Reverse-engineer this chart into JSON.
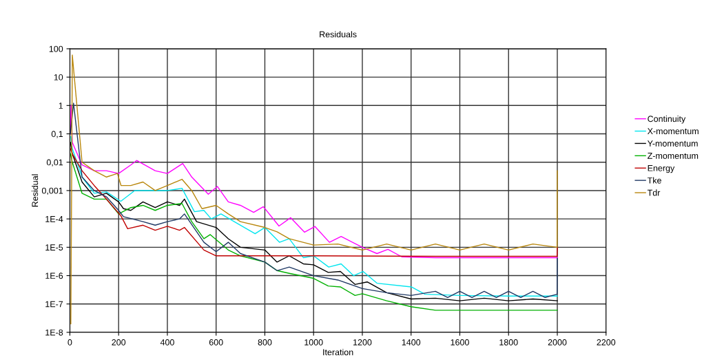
{
  "chart_data": {
    "type": "line",
    "title": "Residuals",
    "xlabel": "Iteration",
    "ylabel": "Residual",
    "log": "y",
    "grid": true,
    "legend": "right",
    "marker": "none",
    "line_style": "solid",
    "xlim": [
      0,
      2200
    ],
    "xticks": [
      0,
      200,
      400,
      600,
      800,
      1000,
      1200,
      1400,
      1600,
      1800,
      2000,
      2200
    ],
    "ylim": [
      1e-08,
      100
    ],
    "yticks": [
      {
        "value": 1e-08,
        "label": "1E-8"
      },
      {
        "value": 1e-07,
        "label": "1E-7"
      },
      {
        "value": 1e-06,
        "label": "1E-6"
      },
      {
        "value": 1e-05,
        "label": "1E-5"
      },
      {
        "value": 0.0001,
        "label": "1E-4"
      },
      {
        "value": 0.001,
        "label": "0,001"
      },
      {
        "value": 0.01,
        "label": "0,01"
      },
      {
        "value": 0.1,
        "label": "0,1"
      },
      {
        "value": 1,
        "label": "1"
      },
      {
        "value": 10,
        "label": "10"
      },
      {
        "value": 100,
        "label": "100"
      }
    ],
    "series": [
      {
        "name": "Continuity",
        "color": "#ff00ff",
        "x": [
          2,
          5,
          10,
          50,
          100,
          150,
          200,
          250,
          274,
          350,
          400,
          463,
          500,
          568,
          605,
          650,
          700,
          754,
          794,
          858,
          906,
          963,
          1006,
          1065,
          1113,
          1200,
          1260,
          1305,
          1362,
          1500,
          1700,
          2000
        ],
        "values": [
          0.1,
          1,
          0.05,
          0.008,
          0.005,
          0.005,
          0.004,
          0.008,
          0.0115,
          0.005,
          0.004,
          0.009,
          0.003,
          0.00074,
          0.0014,
          0.0004,
          0.0003,
          0.00017,
          0.00027,
          5.6e-05,
          0.00011,
          3.4e-05,
          5.4e-05,
          1.5e-05,
          2.4e-05,
          1e-05,
          6e-06,
          8.4e-06,
          4.6e-06,
          4.3e-06,
          4.3e-06,
          4.3e-06
        ]
      },
      {
        "name": "X-momentum",
        "color": "#00e5ee",
        "x": [
          4,
          10,
          50,
          100,
          150,
          209,
          266,
          350,
          400,
          460,
          511,
          550,
          580,
          620,
          700,
          760,
          800,
          860,
          900,
          958,
          1000,
          1062,
          1113,
          1164,
          1203,
          1260,
          1401,
          1457,
          1600,
          1800,
          2000
        ],
        "values": [
          0.08,
          0.03,
          0.003,
          0.0008,
          0.0009,
          0.00042,
          0.001,
          0.001,
          0.001,
          0.0012,
          0.00018,
          0.0002,
          0.0001,
          0.00015,
          6e-05,
          3e-05,
          5e-05,
          1.5e-05,
          2e-05,
          4.3e-06,
          5e-06,
          2e-06,
          2.6e-06,
          1e-06,
          1.4e-06,
          5.4e-07,
          4e-07,
          2.2e-07,
          2e-07,
          1.9e-07,
          1.9e-07
        ]
      },
      {
        "name": "Y-momentum",
        "color": "#000000",
        "x": [
          2,
          10,
          50,
          100,
          150,
          200,
          220,
          250,
          300,
          350,
          400,
          450,
          470,
          520,
          600,
          650,
          700,
          800,
          850,
          900,
          958,
          1000,
          1060,
          1110,
          1170,
          1220,
          1300,
          1400,
          1500,
          1600,
          1700,
          1800,
          1900,
          2000
        ],
        "values": [
          0.05,
          0.02,
          0.002,
          0.0006,
          0.0008,
          0.0004,
          0.00023,
          0.0002,
          0.0004,
          0.00025,
          0.0004,
          0.0003,
          0.0005,
          8e-05,
          5e-05,
          2e-05,
          1e-05,
          8e-06,
          3e-06,
          5e-06,
          2.6e-06,
          2.4e-06,
          1.3e-06,
          1.4e-06,
          4.9e-07,
          6e-07,
          2.5e-07,
          1.5e-07,
          1.6e-07,
          1.3e-07,
          1.6e-07,
          1.3e-07,
          1.5e-07,
          1.3e-07
        ]
      },
      {
        "name": "Z-momentum",
        "color": "#00b000",
        "x": [
          2,
          10,
          50,
          100,
          150,
          200,
          250,
          300,
          350,
          400,
          460,
          500,
          550,
          576,
          650,
          700,
          800,
          850,
          900,
          1000,
          1060,
          1110,
          1170,
          1200,
          1300,
          1400,
          1500,
          1700,
          2000
        ],
        "values": [
          0.02,
          0.01,
          0.0008,
          0.0005,
          0.0005,
          0.00015,
          0.00025,
          0.0003,
          0.0002,
          0.0003,
          0.00035,
          8e-05,
          2e-05,
          2.8e-05,
          8e-06,
          5e-06,
          3e-06,
          1.5e-06,
          1.2e-06,
          8e-07,
          4.3e-07,
          4e-07,
          2e-07,
          2.3e-07,
          1.3e-07,
          8e-08,
          6e-08,
          6e-08,
          6e-08
        ]
      },
      {
        "name": "Energy",
        "color": "#c00000",
        "x": [
          2,
          10,
          50,
          100,
          150,
          209,
          237,
          300,
          350,
          400,
          450,
          470,
          550,
          600,
          1000,
          1500,
          1999,
          2000
        ],
        "values": [
          0.03,
          0.02,
          0.005,
          0.0015,
          0.0005,
          0.00013,
          4.5e-05,
          6e-05,
          4e-05,
          5.5e-05,
          4e-05,
          5e-05,
          8e-06,
          5e-06,
          5e-06,
          4.8e-06,
          4.8e-06,
          1e-05
        ]
      },
      {
        "name": "Tke",
        "color": "#1f3864",
        "x": [
          2,
          15,
          50,
          100,
          150,
          200,
          220,
          300,
          350,
          400,
          450,
          470,
          550,
          600,
          650,
          700,
          800,
          850,
          900,
          1000,
          1100,
          1200,
          1300,
          1400,
          1500,
          1550,
          1600,
          1650,
          1700,
          1750,
          1800,
          1850,
          1900,
          1950,
          1999,
          2000
        ],
        "values": [
          0.1,
          1.2,
          0.003,
          0.001,
          0.0006,
          0.0002,
          0.00012,
          8e-05,
          6e-05,
          8e-05,
          0.0001,
          0.00015,
          1.5e-05,
          7e-06,
          1.5e-05,
          6e-06,
          3e-06,
          1.5e-06,
          2e-06,
          1e-06,
          7e-07,
          3.5e-07,
          2.5e-07,
          2e-07,
          2.8e-07,
          1.7e-07,
          2.8e-07,
          1.7e-07,
          2.8e-07,
          1.7e-07,
          2.8e-07,
          1.7e-07,
          2.8e-07,
          1.7e-07,
          2.2e-07,
          4e-06
        ]
      },
      {
        "name": "Tdr",
        "color": "#b8860b",
        "x": [
          4,
          10,
          50,
          100,
          150,
          195,
          210,
          250,
          300,
          350,
          400,
          460,
          500,
          542,
          600,
          650,
          700,
          800,
          850,
          900,
          1000,
          1100,
          1200,
          1300,
          1400,
          1500,
          1600,
          1700,
          1800,
          1900,
          1999,
          2000
        ],
        "values": [
          2e-08,
          60,
          0.01,
          0.005,
          0.003,
          0.004,
          0.0015,
          0.0015,
          0.002,
          0.001,
          0.0015,
          0.0025,
          0.001,
          0.00023,
          0.0003,
          0.00015,
          8e-05,
          5e-05,
          3.5e-05,
          2e-05,
          1.2e-05,
          1.3e-05,
          8e-06,
          1.3e-05,
          8e-06,
          1.3e-05,
          8e-06,
          1.3e-05,
          8e-06,
          1.3e-05,
          1e-05,
          0.005
        ]
      }
    ]
  }
}
